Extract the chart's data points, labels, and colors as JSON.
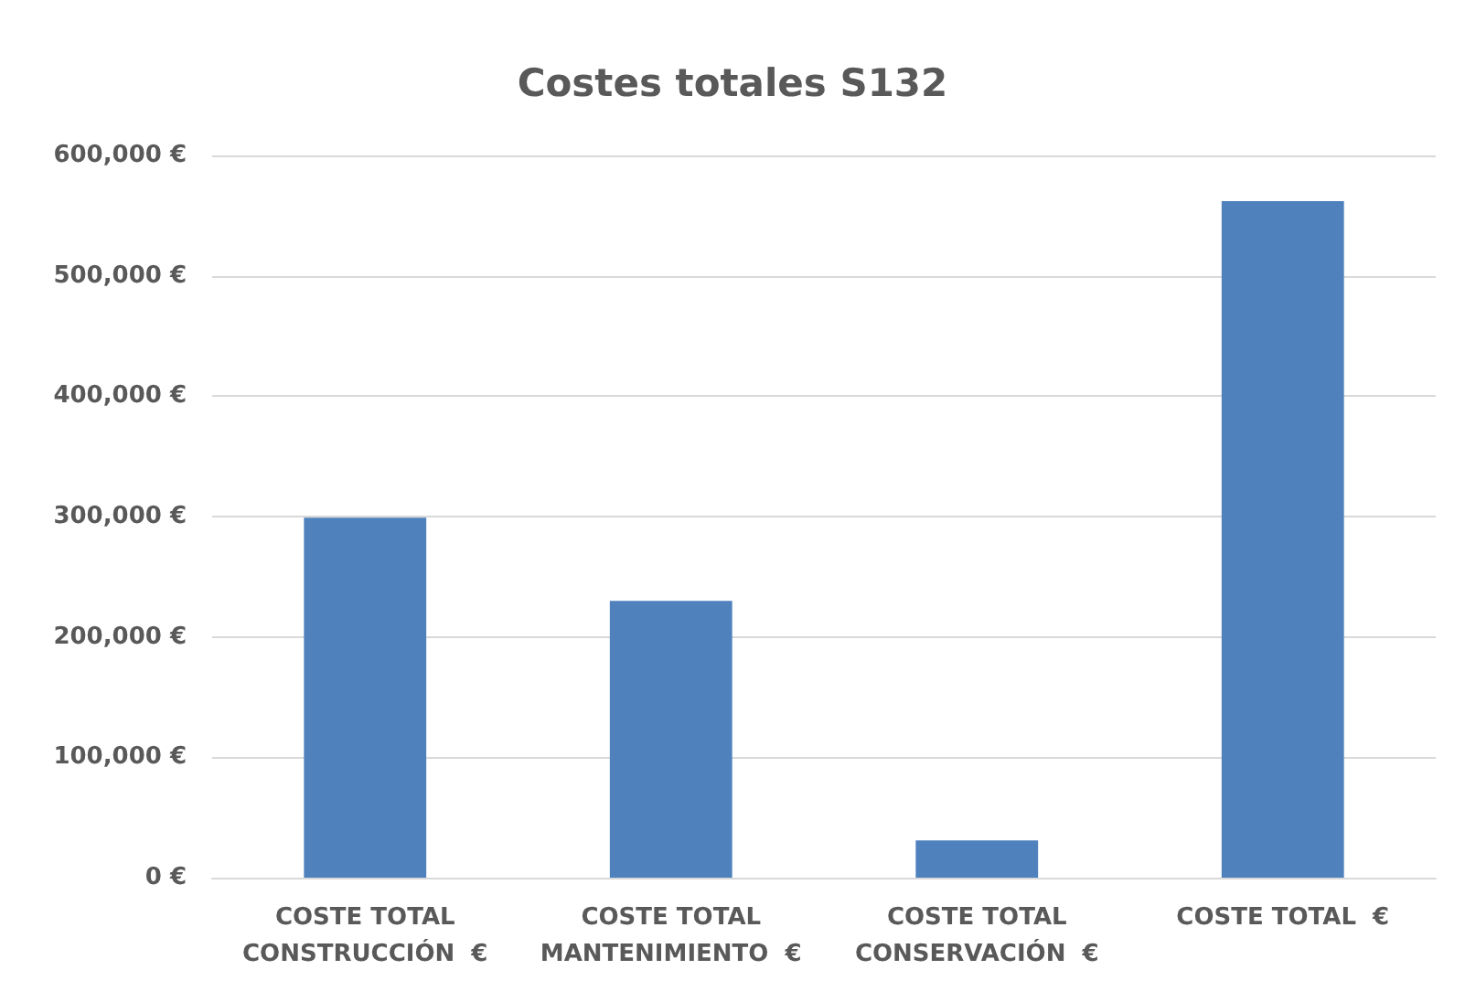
{
  "chart_data": {
    "type": "bar",
    "title": "Costes totales S132",
    "categories": [
      "COSTE TOTAL\nCONSTRUCCIÓN  €",
      "COSTE TOTAL\nMANTENIMIENTO  €",
      "COSTE TOTAL\nCONSERVACIÓN  €",
      "COSTE TOTAL  €"
    ],
    "values": [
      299000,
      230000,
      31000,
      562000
    ],
    "color": "#4f81bd",
    "ylim": [
      0,
      600000
    ],
    "yticks": [
      {
        "value": 0,
        "label": "0 €"
      },
      {
        "value": 100000,
        "label": "100,000 €"
      },
      {
        "value": 200000,
        "label": "200,000 €"
      },
      {
        "value": 300000,
        "label": "300,000 €"
      },
      {
        "value": 400000,
        "label": "400,000 €"
      },
      {
        "value": 500000,
        "label": "500,000 €"
      },
      {
        "value": 600000,
        "label": "600,000 €"
      }
    ],
    "grid": "y"
  }
}
